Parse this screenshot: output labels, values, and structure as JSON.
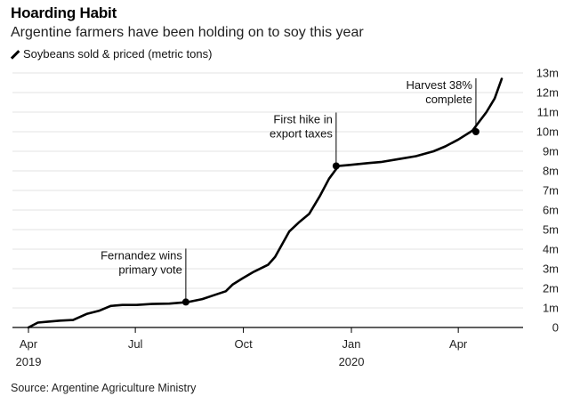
{
  "header": {
    "title": "Hoarding Habit",
    "subtitle": "Argentine farmers have been holding on to soy this year",
    "legend_label": "Soybeans sold & priced (metric tons)",
    "legend_icon": "diagonal-line-icon"
  },
  "footer": {
    "source": "Source: Argentine Agriculture Ministry"
  },
  "colors": {
    "line": "#000000",
    "grid": "#e3e3e3",
    "axis": "#000000",
    "text": "#222222"
  },
  "chart_data": {
    "type": "line",
    "title": "Hoarding Habit",
    "subtitle": "Argentine farmers have been holding on to soy this year",
    "xlabel": "",
    "ylabel": "",
    "y_axis_side": "right",
    "ylim": [
      0,
      13
    ],
    "yticks": [
      0,
      1,
      2,
      3,
      4,
      5,
      6,
      7,
      8,
      9,
      10,
      11,
      12,
      13
    ],
    "ytick_labels": [
      "0",
      "1m",
      "2m",
      "3m",
      "4m",
      "5m",
      "6m",
      "7m",
      "8m",
      "9m",
      "10m",
      "11m",
      "12m",
      "13m"
    ],
    "xlim": [
      0,
      403
    ],
    "xticks": [
      {
        "day": 0,
        "label": "Apr",
        "year": "2019"
      },
      {
        "day": 91,
        "label": "Jul",
        "year": ""
      },
      {
        "day": 183,
        "label": "Oct",
        "year": ""
      },
      {
        "day": 275,
        "label": "Jan",
        "year": "2020"
      },
      {
        "day": 366,
        "label": "Apr",
        "year": ""
      }
    ],
    "grid": true,
    "series": [
      {
        "name": "Soybeans sold & priced (metric tons)",
        "unit": "million metric tons",
        "points": [
          [
            0,
            0.0
          ],
          [
            8,
            0.25
          ],
          [
            17,
            0.3
          ],
          [
            27,
            0.35
          ],
          [
            38,
            0.38
          ],
          [
            50,
            0.7
          ],
          [
            60,
            0.85
          ],
          [
            70,
            1.1
          ],
          [
            80,
            1.15
          ],
          [
            92,
            1.15
          ],
          [
            105,
            1.2
          ],
          [
            120,
            1.22
          ],
          [
            136,
            1.3
          ],
          [
            148,
            1.45
          ],
          [
            158,
            1.65
          ],
          [
            168,
            1.85
          ],
          [
            174,
            2.2
          ],
          [
            182,
            2.5
          ],
          [
            192,
            2.85
          ],
          [
            204,
            3.2
          ],
          [
            210,
            3.6
          ],
          [
            222,
            4.9
          ],
          [
            230,
            5.35
          ],
          [
            239,
            5.8
          ],
          [
            248,
            6.7
          ],
          [
            256,
            7.6
          ],
          [
            264,
            8.25
          ],
          [
            273,
            8.3
          ],
          [
            290,
            8.4
          ],
          [
            300,
            8.45
          ],
          [
            315,
            8.6
          ],
          [
            330,
            8.75
          ],
          [
            345,
            9.0
          ],
          [
            355,
            9.25
          ],
          [
            366,
            9.6
          ],
          [
            378,
            10.05
          ],
          [
            390,
            11.0
          ],
          [
            397,
            11.7
          ],
          [
            403,
            12.7
          ]
        ]
      }
    ],
    "annotations": [
      {
        "day": 134,
        "value": 1.3,
        "lines": [
          "Fernandez wins",
          "primary vote"
        ]
      },
      {
        "day": 262,
        "value": 8.25,
        "lines": [
          "First hike in",
          "export taxes"
        ]
      },
      {
        "day": 381,
        "value": 10.0,
        "lines": [
          "Harvest 38%",
          "complete"
        ]
      }
    ]
  }
}
